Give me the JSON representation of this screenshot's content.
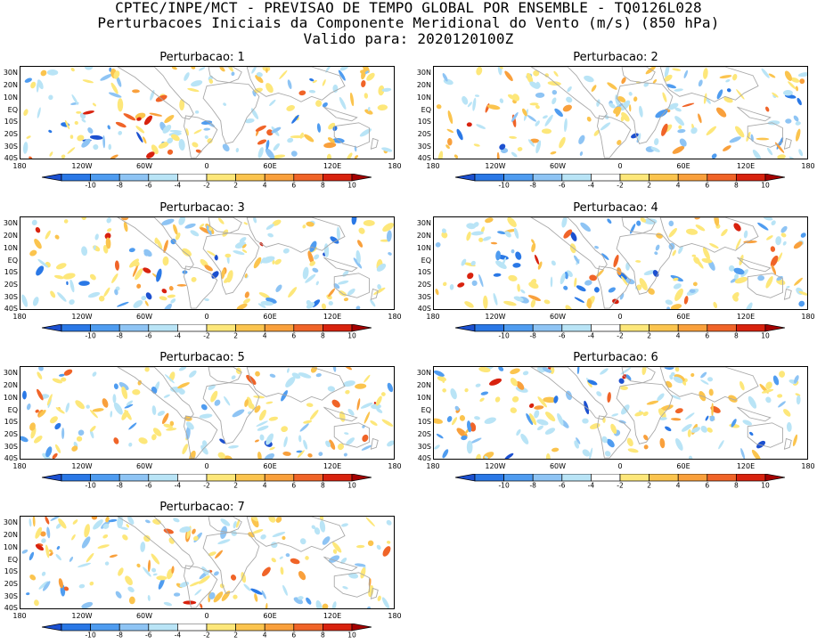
{
  "header": {
    "line1": "CPTEC/INPE/MCT - PREVISAO DE TEMPO GLOBAL POR ENSEMBLE - TQ0126L028",
    "line2": "Perturbacoes Iniciais da Componente Meridional do Vento (m/s) (850 hPa)",
    "line3": "Valido para: 2020120100Z"
  },
  "panels": [
    {
      "title": "Perturbacao: 1"
    },
    {
      "title": "Perturbacao: 2"
    },
    {
      "title": "Perturbacao: 3"
    },
    {
      "title": "Perturbacao: 4"
    },
    {
      "title": "Perturbacao: 5"
    },
    {
      "title": "Perturbacao: 6"
    },
    {
      "title": "Perturbacao: 7"
    }
  ],
  "lat_labels": [
    "30N",
    "20N",
    "10N",
    "EQ",
    "10S",
    "20S",
    "30S",
    "40S"
  ],
  "lon_labels": [
    "180",
    "120W",
    "60W",
    "0",
    "60E",
    "120E",
    "180"
  ],
  "colorbar": {
    "tick_labels": [
      "-10",
      "-8",
      "-6",
      "-4",
      "-2",
      "2",
      "4",
      "6",
      "8",
      "10"
    ],
    "colors": [
      "#1c50d0",
      "#2a78e6",
      "#4f9cf0",
      "#8ec4f4",
      "#b9e4f6",
      "#ffffff",
      "#fde77a",
      "#fbc44e",
      "#f9a03c",
      "#f06428",
      "#d8220e",
      "#a50000"
    ]
  }
}
